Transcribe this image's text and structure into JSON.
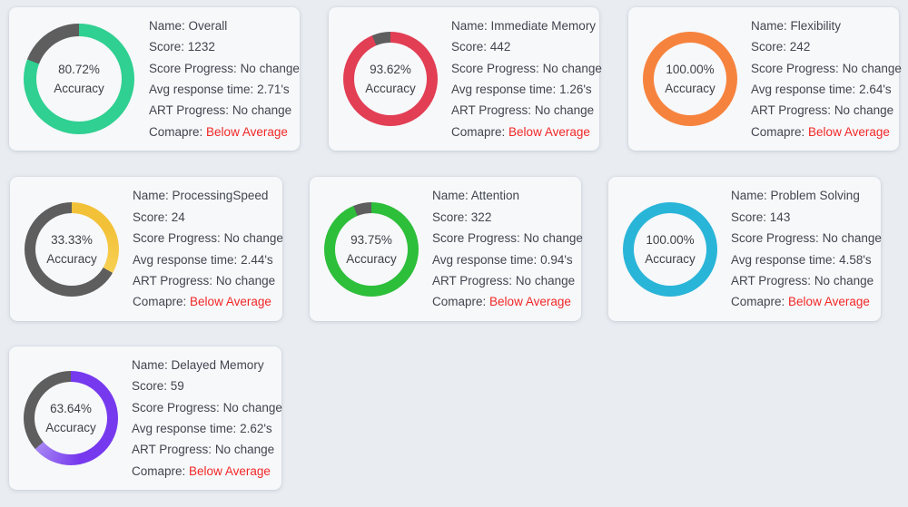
{
  "labels": {
    "name": "Name:",
    "score": "Score:",
    "score_progress": "Score Progress:",
    "avg_rt": "Avg response time:",
    "art_progress": "ART Progress:",
    "compare": "Comapre:"
  },
  "cards": [
    {
      "name": "Overall",
      "accuracy_pct": "80.72%",
      "accuracy_label": "Accuracy",
      "accuracy_value": 80.72,
      "score": "1232",
      "score_progress": "No change",
      "avg_response_time": "2.71's",
      "art_progress": "No change",
      "compare": "Below Average",
      "ring_color": "#2fd091",
      "ring_rest_color": "#5e5e5e"
    },
    {
      "name": "Immediate Memory",
      "accuracy_pct": "93.62%",
      "accuracy_label": "Accuracy",
      "accuracy_value": 93.62,
      "score": "442",
      "score_progress": "No change",
      "avg_response_time": "1.26's",
      "art_progress": "No change",
      "compare": "Below Average",
      "ring_color": "#e23e54",
      "ring_rest_color": "#5e5e5e"
    },
    {
      "name": "Flexibility",
      "accuracy_pct": "100.00%",
      "accuracy_label": "Accuracy",
      "accuracy_value": 100,
      "score": "242",
      "score_progress": "No change",
      "avg_response_time": "2.64's",
      "art_progress": "No change",
      "compare": "Below Average",
      "ring_color": "#f6833d",
      "ring_rest_color": "#5e5e5e"
    },
    {
      "name": "ProcessingSpeed",
      "accuracy_pct": "33.33%",
      "accuracy_label": "Accuracy",
      "accuracy_value": 33.33,
      "score": "24",
      "score_progress": "No change",
      "avg_response_time": "2.44's",
      "art_progress": "No change",
      "compare": "Below Average",
      "ring_color": "#f2c138",
      "ring_color_end": "#f7d052",
      "ring_rest_color": "#5e5e5e"
    },
    {
      "name": "Attention",
      "accuracy_pct": "93.75%",
      "accuracy_label": "Accuracy",
      "accuracy_value": 93.75,
      "score": "322",
      "score_progress": "No change",
      "avg_response_time": "0.94's",
      "art_progress": "No change",
      "compare": "Below Average",
      "ring_color": "#2dbe3a",
      "ring_rest_color": "#5e5e5e"
    },
    {
      "name": "Problem Solving",
      "accuracy_pct": "100.00%",
      "accuracy_label": "Accuracy",
      "accuracy_value": 100,
      "score": "143",
      "score_progress": "No change",
      "avg_response_time": "4.58's",
      "art_progress": "No change",
      "compare": "Below Average",
      "ring_color": "#29b5d8",
      "ring_rest_color": "#5e5e5e"
    },
    {
      "name": "Delayed Memory",
      "accuracy_pct": "63.64%",
      "accuracy_label": "Accuracy",
      "accuracy_value": 63.64,
      "score": "59",
      "score_progress": "No change",
      "avg_response_time": "2.62's",
      "art_progress": "No change",
      "compare": "Below Average",
      "ring_color": "#7739ee",
      "ring_color_end": "#a585f3",
      "ring_rest_color": "#5e5e5e"
    }
  ],
  "chart_data": [
    {
      "type": "pie",
      "subtype": "donut-gauge",
      "title": "Overall",
      "labels": [
        "Accuracy",
        "Remaining"
      ],
      "values": [
        80.72,
        19.28
      ],
      "colors": [
        "#2fd091",
        "#5e5e5e"
      ],
      "center_text": "80.72% Accuracy"
    },
    {
      "type": "pie",
      "subtype": "donut-gauge",
      "title": "Immediate Memory",
      "labels": [
        "Accuracy",
        "Remaining"
      ],
      "values": [
        93.62,
        6.38
      ],
      "colors": [
        "#e23e54",
        "#5e5e5e"
      ],
      "center_text": "93.62% Accuracy"
    },
    {
      "type": "pie",
      "subtype": "donut-gauge",
      "title": "Flexibility",
      "labels": [
        "Accuracy",
        "Remaining"
      ],
      "values": [
        100,
        0
      ],
      "colors": [
        "#f6833d",
        "#5e5e5e"
      ],
      "center_text": "100.00% Accuracy"
    },
    {
      "type": "pie",
      "subtype": "donut-gauge",
      "title": "ProcessingSpeed",
      "labels": [
        "Accuracy",
        "Remaining"
      ],
      "values": [
        33.33,
        66.67
      ],
      "colors": [
        "#f2c138",
        "#5e5e5e"
      ],
      "center_text": "33.33% Accuracy"
    },
    {
      "type": "pie",
      "subtype": "donut-gauge",
      "title": "Attention",
      "labels": [
        "Accuracy",
        "Remaining"
      ],
      "values": [
        93.75,
        6.25
      ],
      "colors": [
        "#2dbe3a",
        "#5e5e5e"
      ],
      "center_text": "93.75% Accuracy"
    },
    {
      "type": "pie",
      "subtype": "donut-gauge",
      "title": "Problem Solving",
      "labels": [
        "Accuracy",
        "Remaining"
      ],
      "values": [
        100,
        0
      ],
      "colors": [
        "#29b5d8",
        "#5e5e5e"
      ],
      "center_text": "100.00% Accuracy"
    },
    {
      "type": "pie",
      "subtype": "donut-gauge",
      "title": "Delayed Memory",
      "labels": [
        "Accuracy",
        "Remaining"
      ],
      "values": [
        63.64,
        36.36
      ],
      "colors": [
        "#7739ee",
        "#5e5e5e"
      ],
      "center_text": "63.64% Accuracy"
    }
  ]
}
